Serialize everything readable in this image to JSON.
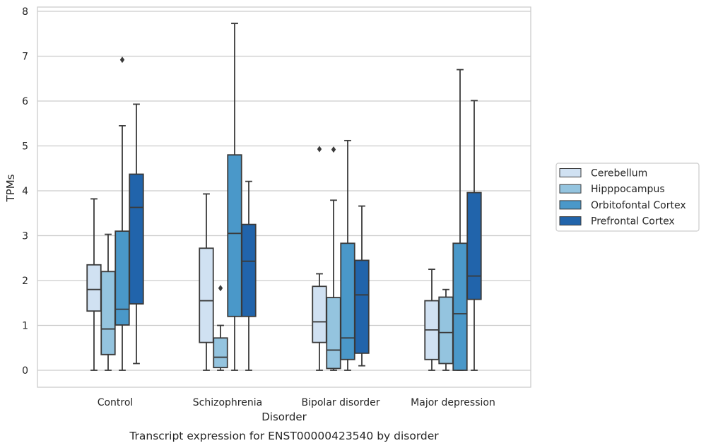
{
  "chart_data": {
    "type": "box",
    "xlabel": "Disorder",
    "ylabel": "TPMs",
    "caption": "Transcript expression for ENST00000423540 by disorder",
    "ylim": [
      -0.35,
      8.1
    ],
    "yticks": [
      0,
      1,
      2,
      3,
      4,
      5,
      6,
      7,
      8
    ],
    "grid": "horizontal",
    "legend_position": "right",
    "categories": [
      "Control",
      "Schizophrenia",
      "Bipolar disorder",
      "Major depression"
    ],
    "series": [
      {
        "name": "Cerebellum",
        "color": "#d0e1f2",
        "boxes": [
          {
            "whisker_low": 0.0,
            "q1": 1.32,
            "median": 1.8,
            "q3": 2.35,
            "whisker_high": 3.82,
            "outliers": []
          },
          {
            "whisker_low": 0.0,
            "q1": 0.62,
            "median": 1.55,
            "q3": 2.72,
            "whisker_high": 3.93,
            "outliers": []
          },
          {
            "whisker_low": 0.0,
            "q1": 0.62,
            "median": 1.08,
            "q3": 1.87,
            "whisker_high": 2.15,
            "outliers": [
              4.93
            ]
          },
          {
            "whisker_low": 0.0,
            "q1": 0.24,
            "median": 0.9,
            "q3": 1.55,
            "whisker_high": 2.25,
            "outliers": []
          }
        ]
      },
      {
        "name": "Hipppocampus",
        "color": "#94c4df",
        "boxes": [
          {
            "whisker_low": 0.0,
            "q1": 0.35,
            "median": 0.92,
            "q3": 2.2,
            "whisker_high": 3.03,
            "outliers": []
          },
          {
            "whisker_low": 0.0,
            "q1": 0.06,
            "median": 0.29,
            "q3": 0.72,
            "whisker_high": 1.0,
            "outliers": [
              1.83
            ]
          },
          {
            "whisker_low": 0.0,
            "q1": 0.04,
            "median": 0.45,
            "q3": 1.62,
            "whisker_high": 3.79,
            "outliers": [
              4.92
            ]
          },
          {
            "whisker_low": 0.0,
            "q1": 0.15,
            "median": 0.84,
            "q3": 1.63,
            "whisker_high": 1.8,
            "outliers": []
          }
        ]
      },
      {
        "name": "Orbitofontal Cortex",
        "color": "#4a98c9",
        "boxes": [
          {
            "whisker_low": 0.0,
            "q1": 1.01,
            "median": 1.36,
            "q3": 3.1,
            "whisker_high": 5.45,
            "outliers": [
              6.92
            ]
          },
          {
            "whisker_low": 0.0,
            "q1": 1.2,
            "median": 3.05,
            "q3": 4.8,
            "whisker_high": 7.73,
            "outliers": []
          },
          {
            "whisker_low": 0.0,
            "q1": 0.24,
            "median": 0.72,
            "q3": 2.83,
            "whisker_high": 5.12,
            "outliers": []
          },
          {
            "whisker_low": 0.0,
            "q1": 0.0,
            "median": 1.26,
            "q3": 2.83,
            "whisker_high": 6.7,
            "outliers": []
          }
        ]
      },
      {
        "name": "Prefrontal Cortex",
        "color": "#2164ab",
        "boxes": [
          {
            "whisker_low": 0.15,
            "q1": 1.48,
            "median": 3.63,
            "q3": 4.37,
            "whisker_high": 5.93,
            "outliers": []
          },
          {
            "whisker_low": 0.0,
            "q1": 1.2,
            "median": 2.43,
            "q3": 3.25,
            "whisker_high": 4.21,
            "outliers": []
          },
          {
            "whisker_low": 0.1,
            "q1": 0.38,
            "median": 1.68,
            "q3": 2.45,
            "whisker_high": 3.66,
            "outliers": []
          },
          {
            "whisker_low": 0.0,
            "q1": 1.58,
            "median": 2.1,
            "q3": 3.96,
            "whisker_high": 6.01,
            "outliers": []
          }
        ]
      }
    ]
  }
}
